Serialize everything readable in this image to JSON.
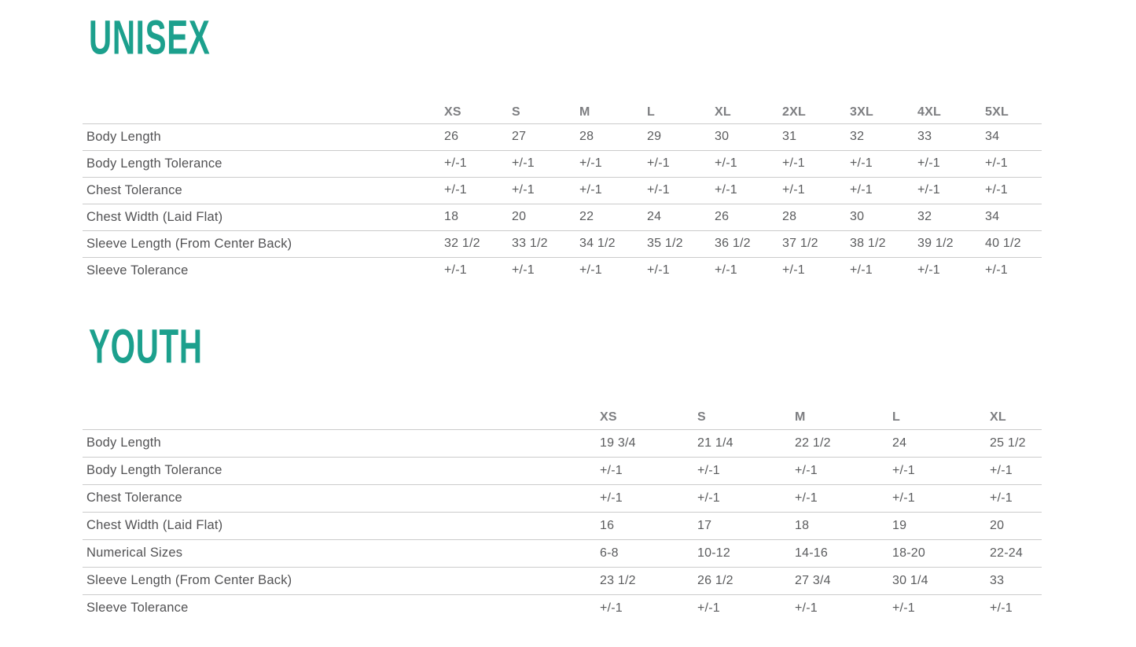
{
  "colors": {
    "accent": "#1CA08D",
    "header_text": "#7d7e81",
    "label_text": "#525254",
    "value_text": "#5a5b5d",
    "divider": "#cbcbcb"
  },
  "chart_data": [
    {
      "type": "table",
      "title": "UNISEX",
      "columns": [
        "XS",
        "S",
        "M",
        "L",
        "XL",
        "2XL",
        "3XL",
        "4XL",
        "5XL"
      ],
      "rows": [
        {
          "label": "Body Length",
          "values": [
            "26",
            "27",
            "28",
            "29",
            "30",
            "31",
            "32",
            "33",
            "34"
          ]
        },
        {
          "label": "Body Length Tolerance",
          "values": [
            "+/-1",
            "+/-1",
            "+/-1",
            "+/-1",
            "+/-1",
            "+/-1",
            "+/-1",
            "+/-1",
            "+/-1"
          ]
        },
        {
          "label": "Chest Tolerance",
          "values": [
            "+/-1",
            "+/-1",
            "+/-1",
            "+/-1",
            "+/-1",
            "+/-1",
            "+/-1",
            "+/-1",
            "+/-1"
          ]
        },
        {
          "label": "Chest Width (Laid Flat)",
          "values": [
            "18",
            "20",
            "22",
            "24",
            "26",
            "28",
            "30",
            "32",
            "34"
          ]
        },
        {
          "label": "Sleeve Length (From Center Back)",
          "values": [
            "32 1/2",
            "33 1/2",
            "34 1/2",
            "35 1/2",
            "36 1/2",
            "37 1/2",
            "38 1/2",
            "39 1/2",
            "40 1/2"
          ]
        },
        {
          "label": "Sleeve Tolerance",
          "values": [
            "+/-1",
            "+/-1",
            "+/-1",
            "+/-1",
            "+/-1",
            "+/-1",
            "+/-1",
            "+/-1",
            "+/-1"
          ]
        }
      ]
    },
    {
      "type": "table",
      "title": "YOUTH",
      "columns": [
        "XS",
        "S",
        "M",
        "L",
        "XL"
      ],
      "rows": [
        {
          "label": "Body Length",
          "values": [
            "19 3/4",
            "21 1/4",
            "22 1/2",
            "24",
            "25 1/2"
          ]
        },
        {
          "label": "Body Length Tolerance",
          "values": [
            "+/-1",
            "+/-1",
            "+/-1",
            "+/-1",
            "+/-1"
          ]
        },
        {
          "label": "Chest Tolerance",
          "values": [
            "+/-1",
            "+/-1",
            "+/-1",
            "+/-1",
            "+/-1"
          ]
        },
        {
          "label": "Chest Width (Laid Flat)",
          "values": [
            "16",
            "17",
            "18",
            "19",
            "20"
          ]
        },
        {
          "label": "Numerical Sizes",
          "values": [
            "6-8",
            "10-12",
            "14-16",
            "18-20",
            "22-24"
          ]
        },
        {
          "label": "Sleeve Length (From Center Back)",
          "values": [
            "23 1/2",
            "26 1/2",
            "27 3/4",
            "30 1/4",
            "33"
          ]
        },
        {
          "label": "Sleeve Tolerance",
          "values": [
            "+/-1",
            "+/-1",
            "+/-1",
            "+/-1",
            "+/-1"
          ]
        }
      ]
    }
  ]
}
